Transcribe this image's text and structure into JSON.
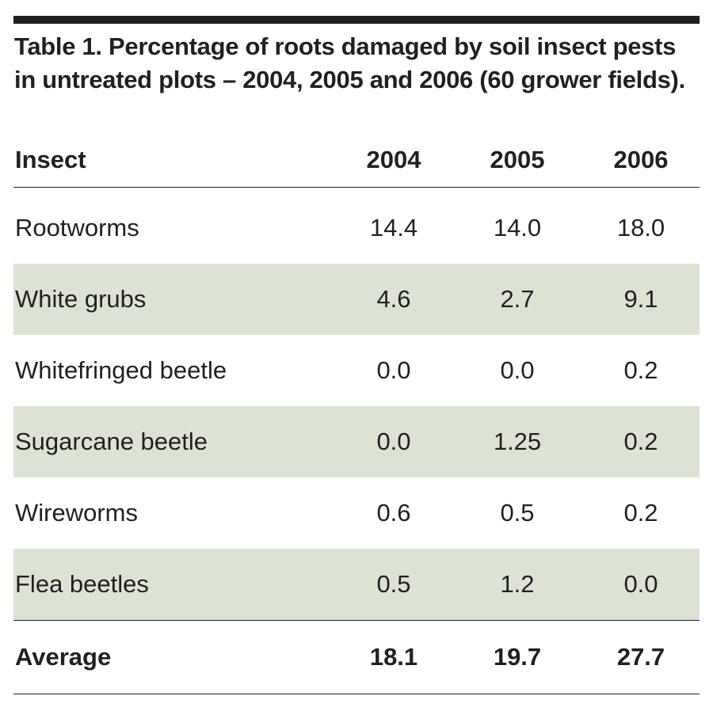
{
  "caption": "Table 1. Percentage of roots damaged by soil insect pests in untreated plots – 2004, 2005 and 2006 (60 grower fields).",
  "columns": [
    "Insect",
    "2004",
    "2005",
    "2006"
  ],
  "rows": [
    {
      "insect": "Rootworms",
      "y2004": "14.4",
      "y2005": "14.0",
      "y2006": "18.0"
    },
    {
      "insect": "White grubs",
      "y2004": "4.6",
      "y2005": "2.7",
      "y2006": "9.1"
    },
    {
      "insect": "Whitefringed beetle",
      "y2004": "0.0",
      "y2005": "0.0",
      "y2006": "0.2"
    },
    {
      "insect": "Sugarcane beetle",
      "y2004": "0.0",
      "y2005": "1.25",
      "y2006": "0.2"
    },
    {
      "insect": "Wireworms",
      "y2004": "0.6",
      "y2005": "0.5",
      "y2006": "0.2"
    },
    {
      "insect": "Flea beetles",
      "y2004": "0.5",
      "y2005": "1.2",
      "y2006": "0.0"
    }
  ],
  "average": {
    "label": "Average",
    "y2004": "18.1",
    "y2005": "19.7",
    "y2006": "27.7"
  },
  "colors": {
    "shade": "#dde3d4",
    "ink": "#231f20"
  }
}
